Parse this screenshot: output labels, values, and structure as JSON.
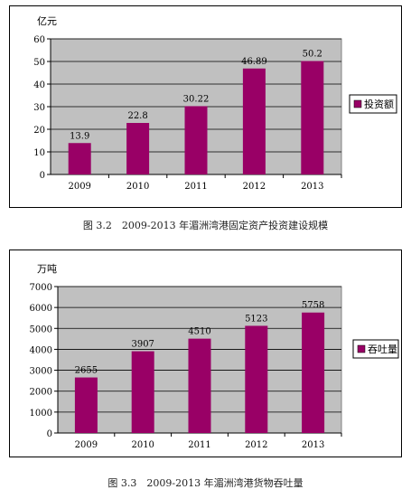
{
  "chart_data": [
    {
      "type": "bar",
      "ylabel": "亿元",
      "categories": [
        "2009",
        "2010",
        "2011",
        "2012",
        "2013"
      ],
      "series": [
        {
          "name": "投资额",
          "values": [
            13.9,
            22.8,
            30.22,
            46.89,
            50.2
          ]
        }
      ],
      "data_labels": [
        "13.9",
        "22.8",
        "30.22",
        "46.89",
        "50.2"
      ],
      "ylim": [
        0,
        60
      ],
      "yticks": [
        "0",
        "10",
        "20",
        "30",
        "40",
        "50",
        "60"
      ],
      "grid": true,
      "legend": "right",
      "caption": "图 3.2　2009-2013 年湄洲湾港固定资产投资建设规模"
    },
    {
      "type": "bar",
      "ylabel": "万吨",
      "categories": [
        "2009",
        "2010",
        "2011",
        "2012",
        "2013"
      ],
      "series": [
        {
          "name": "吞吐量",
          "values": [
            2655,
            3907,
            4510,
            5123,
            5758
          ]
        }
      ],
      "data_labels": [
        "2655",
        "3907",
        "4510",
        "5123",
        "5758"
      ],
      "ylim": [
        0,
        7000
      ],
      "yticks": [
        "0",
        "1000",
        "2000",
        "3000",
        "4000",
        "5000",
        "6000",
        "7000"
      ],
      "grid": true,
      "legend": "right",
      "caption": "图 3.3　2009-2013 年湄洲湾港货物吞吐量"
    }
  ],
  "colors": {
    "bar": "#990066",
    "plot_bg": "#c0c0c0",
    "grid": "#000000"
  }
}
